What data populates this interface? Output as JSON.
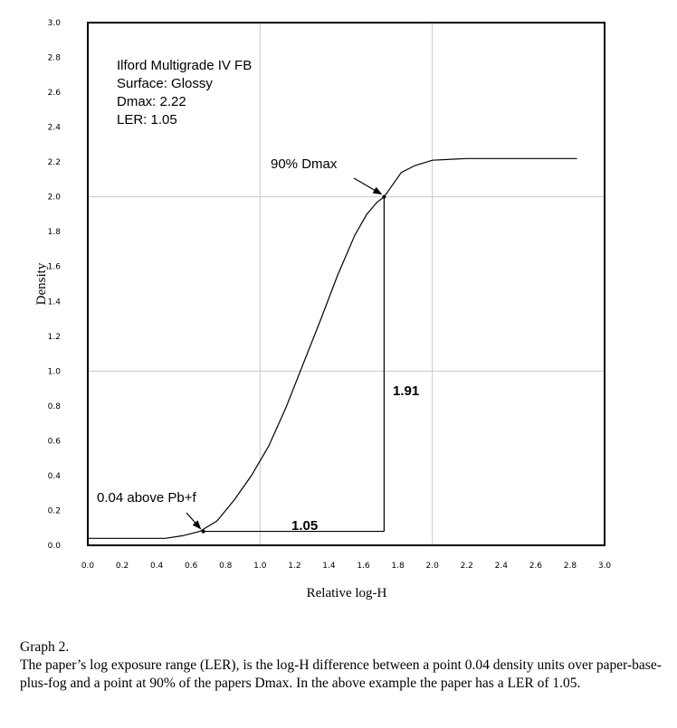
{
  "chart_data": {
    "type": "line",
    "xlabel": "Relative log-H",
    "ylabel": "Density",
    "xlim": [
      0.0,
      3.0
    ],
    "ylim": [
      0.0,
      3.0
    ],
    "x_ticks": [
      "0.0",
      "0.2",
      "0.4",
      "0.6",
      "0.8",
      "1.0",
      "1.2",
      "1.4",
      "1.6",
      "1.8",
      "2.0",
      "2.2",
      "2.4",
      "2.6",
      "2.8",
      "3.0"
    ],
    "y_ticks": [
      "0.0",
      "0.2",
      "0.4",
      "0.6",
      "0.8",
      "1.0",
      "1.2",
      "1.4",
      "1.6",
      "1.8",
      "2.0",
      "2.2",
      "2.4",
      "2.6",
      "2.8",
      "3.0"
    ],
    "grid": "major lines at 1.0 and 2.0",
    "series": [
      {
        "x": [
          0.0,
          0.3,
          0.45,
          0.55,
          0.65,
          0.75,
          0.85,
          0.95,
          1.05,
          1.15,
          1.25,
          1.35,
          1.45,
          1.55,
          1.62,
          1.68,
          1.72,
          1.77,
          1.82,
          1.9,
          2.0,
          2.2,
          2.5,
          2.84
        ],
        "y": [
          0.04,
          0.04,
          0.04,
          0.055,
          0.08,
          0.14,
          0.26,
          0.4,
          0.57,
          0.79,
          1.04,
          1.29,
          1.55,
          1.78,
          1.9,
          1.97,
          2.0,
          2.07,
          2.14,
          2.18,
          2.21,
          2.22,
          2.22,
          2.22
        ]
      }
    ],
    "annotations": [
      {
        "text": "Ilford Multigrade IV FB"
      },
      {
        "text": "Surface: Glossy"
      },
      {
        "text": "Dmax: 2.22"
      },
      {
        "text": "LER: 1.05"
      },
      {
        "text": "90% Dmax",
        "x": 1.72,
        "y": 2.0
      },
      {
        "text": "0.04 above Pb+f",
        "x": 0.67,
        "y": 0.08
      },
      {
        "text": "1.05"
      },
      {
        "text": "1.91"
      }
    ],
    "ler_markers": {
      "x_start": 0.67,
      "x_end": 1.72,
      "y_low": 0.08,
      "y_high": 2.0
    }
  },
  "caption": {
    "title": "Graph 2.",
    "body": "The paper’s log exposure range (LER), is the log-H difference between a point 0.04 density units over paper-base-plus-fog and a point at 90% of the papers Dmax.  In the above example the paper has a LER of 1.05."
  }
}
